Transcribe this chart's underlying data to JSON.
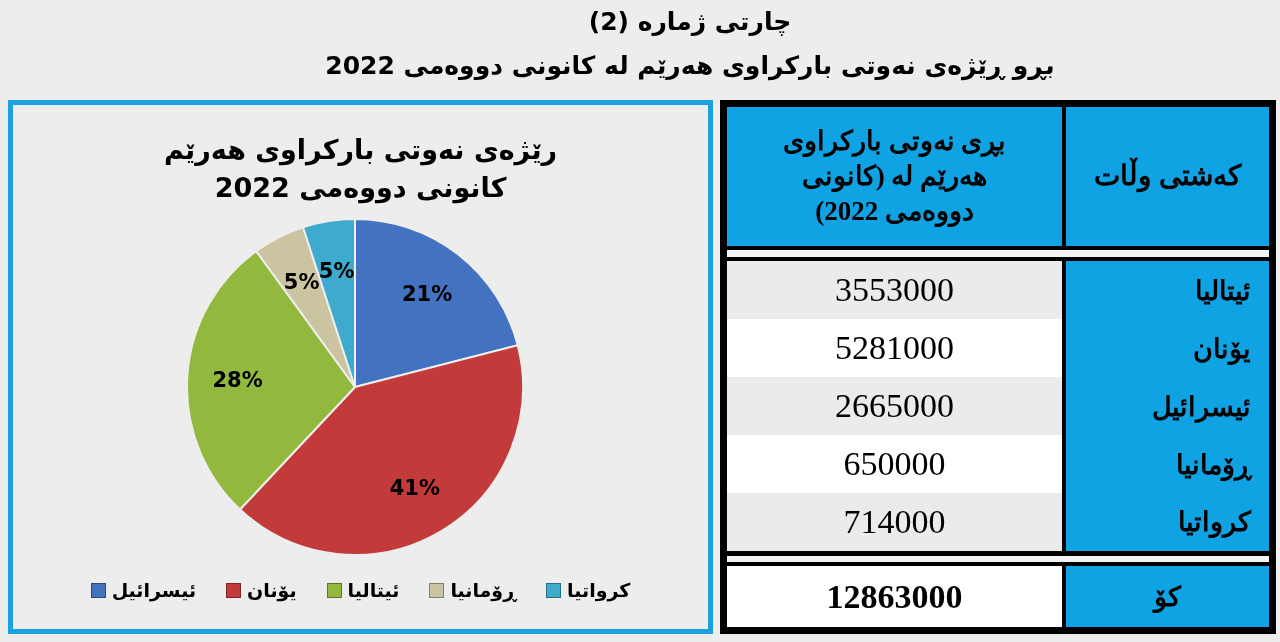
{
  "chart_data": [
    {
      "type": "other",
      "title": "چارتی ژمارە (2)",
      "subtitle": "بڕو ڕێژەی نەوتی بارکراوی هەرێم لە کانونی دووەمی 2022"
    },
    {
      "type": "pie",
      "title": "رێژەی نەوتی بارکراوی هەرێم\nکانونی دووەمی 2022",
      "categories": [
        "ئیسرائیل",
        "یۆنان",
        "ئیتالیا",
        "ڕۆمانیا",
        "کرواتیا"
      ],
      "values": [
        21,
        41,
        28,
        5,
        5
      ],
      "colors": [
        "#4372c0",
        "#c23b3a",
        "#92b83e",
        "#cbc4a0",
        "#3eaacd"
      ],
      "value_labels": [
        "21%",
        "41%",
        "28%",
        "5%",
        "5%"
      ],
      "legend": "bottom"
    },
    {
      "type": "other",
      "categories": [
        "ئیتالیا",
        "یۆنان",
        "ئیسرائیل",
        "ڕۆمانیا",
        "کرواتیا"
      ],
      "values": [
        3553000,
        5281000,
        2665000,
        650000,
        714000
      ],
      "data_labels": true,
      "totals": [
        "12863000"
      ],
      "annotations": [
        "بڕی نەوتی بارکراوی هەرێم لە (کانونی دووەمی 2022)",
        "کەشتی وڵات",
        "کۆ"
      ]
    }
  ]
}
